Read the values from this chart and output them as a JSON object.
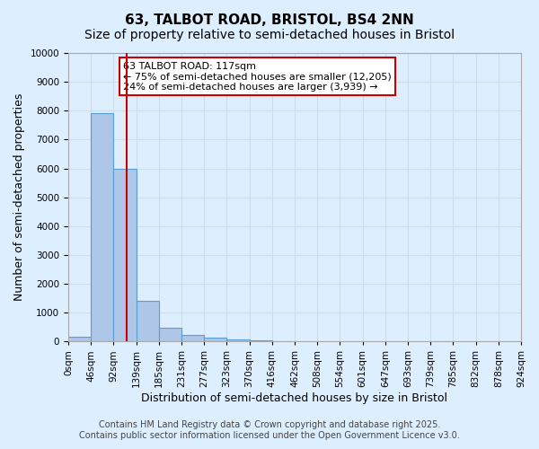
{
  "title": "63, TALBOT ROAD, BRISTOL, BS4 2NN",
  "subtitle": "Size of property relative to semi-detached houses in Bristol",
  "xlabel": "Distribution of semi-detached houses by size in Bristol",
  "ylabel": "Number of semi-detached properties",
  "bin_labels": [
    "0sqm",
    "46sqm",
    "92sqm",
    "139sqm",
    "185sqm",
    "231sqm",
    "277sqm",
    "323sqm",
    "370sqm",
    "416sqm",
    "462sqm",
    "508sqm",
    "554sqm",
    "601sqm",
    "647sqm",
    "693sqm",
    "739sqm",
    "785sqm",
    "832sqm",
    "878sqm",
    "924sqm"
  ],
  "bar_values": [
    150,
    7900,
    6000,
    1400,
    480,
    230,
    130,
    80,
    50,
    0,
    0,
    0,
    0,
    0,
    0,
    0,
    0,
    0,
    0,
    0
  ],
  "bar_color": "#aec6e8",
  "bar_edge_color": "#5a9fd4",
  "vline_x": 2.58,
  "vline_color": "#cc0000",
  "annotation_text": "63 TALBOT ROAD: 117sqm\n← 75% of semi-detached houses are smaller (12,205)\n24% of semi-detached houses are larger (3,939) →",
  "annotation_box_color": "#ffffff",
  "annotation_box_edge": "#cc0000",
  "ylim": [
    0,
    10000
  ],
  "yticks": [
    0,
    1000,
    2000,
    3000,
    4000,
    5000,
    6000,
    7000,
    8000,
    9000,
    10000
  ],
  "grid_color": "#ccddee",
  "background_color": "#ddeeff",
  "footer_line1": "Contains HM Land Registry data © Crown copyright and database right 2025.",
  "footer_line2": "Contains public sector information licensed under the Open Government Licence v3.0.",
  "title_fontsize": 11,
  "subtitle_fontsize": 10,
  "axis_label_fontsize": 9,
  "tick_fontsize": 7.5,
  "annotation_fontsize": 8,
  "footer_fontsize": 7
}
